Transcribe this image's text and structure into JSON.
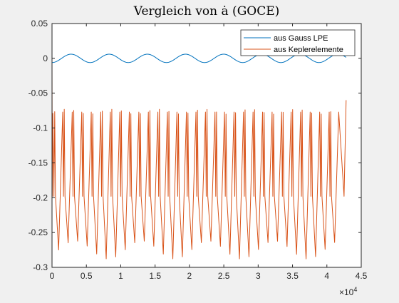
{
  "chart_data": {
    "type": "line",
    "title": "Vergleich von ȧ (GOCE)",
    "xlabel": "",
    "ylabel": "",
    "xlim": [
      0,
      4.5
    ],
    "ylim": [
      -0.3,
      0.05
    ],
    "x_exponent_label": "×10",
    "x_exponent_power": "4",
    "xticks": [
      0,
      0.5,
      1,
      1.5,
      2,
      2.5,
      3,
      3.5,
      4,
      4.5
    ],
    "xtick_labels": [
      "0",
      "0.5",
      "1",
      "1.5",
      "2",
      "2.5",
      "3",
      "3.5",
      "4",
      "4.5"
    ],
    "yticks": [
      0.05,
      0,
      -0.05,
      -0.1,
      -0.15,
      -0.2,
      -0.25,
      -0.3
    ],
    "ytick_labels": [
      "0.05",
      "0",
      "-0.05",
      "-0.1",
      "-0.15",
      "-0.2",
      "-0.25",
      "-0.3"
    ],
    "grid": false,
    "legend_position": "top-right",
    "series": [
      {
        "name": "aus Gauss LPE",
        "color": "#0072bd",
        "x_start": 0.0,
        "x_end": 4.28,
        "mean": 0.0,
        "amplitude": 0.006,
        "period": 0.555,
        "phase_deg": 180
      },
      {
        "name": "aus Keplerelemente",
        "color": "#d95319",
        "x_start": 0.0,
        "x_end": 4.28,
        "initial_value": -0.005,
        "peak_max": -0.073,
        "peak_min": -0.08,
        "trough_min": -0.288,
        "trough_max": -0.262,
        "dip_value": -0.198,
        "period": 0.1385,
        "final_value": -0.06
      }
    ]
  }
}
